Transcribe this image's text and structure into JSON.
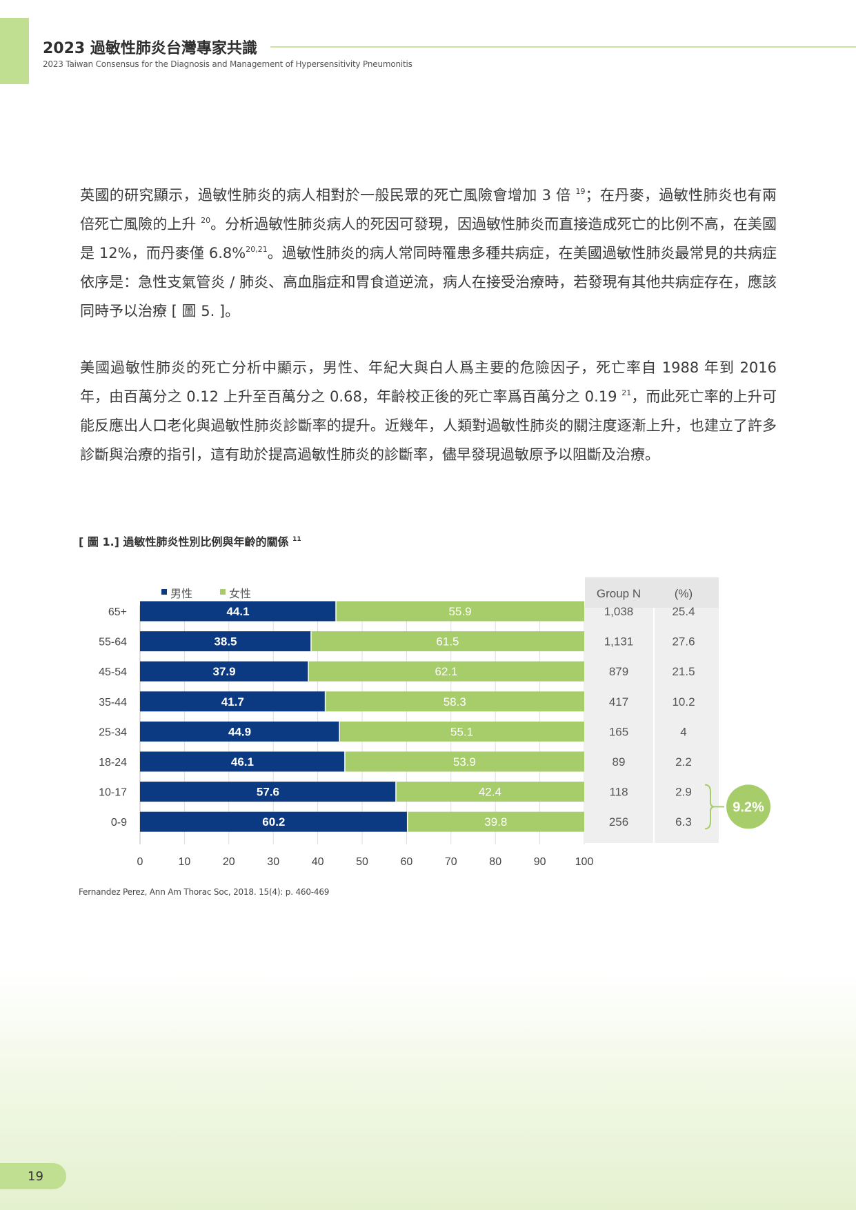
{
  "header": {
    "title": "2023 過敏性肺炎台灣專家共識",
    "subtitle": "2023 Taiwan Consensus for the Diagnosis and Management of Hypersensitivity Pneumonitis"
  },
  "paragraphs": [
    {
      "segments": [
        {
          "text": "英國的研究顯示，過敏性肺炎的病人相對於一般民眾的死亡風險會增加 3 倍 "
        },
        {
          "text": "19",
          "sup": true
        },
        {
          "text": "；在丹麥，過敏性肺炎也有兩倍死亡風險的上升 "
        },
        {
          "text": "20",
          "sup": true
        },
        {
          "text": "。分析過敏性肺炎病人的死因可發現，因過敏性肺炎而直接造成死亡的比例不高，在美國是 12%，而丹麥僅 6.8%"
        },
        {
          "text": "20,21",
          "sup": true
        },
        {
          "text": "。過敏性肺炎的病人常同時罹患多種共病症，在美國過敏性肺炎最常見的共病症依序是：急性支氣管炎 / 肺炎、高血脂症和胃食道逆流，病人在接受治療時，若發現有其他共病症存在，應該同時予以治療 [ 圖 5. ]。"
        }
      ]
    },
    {
      "segments": [
        {
          "text": "美國過敏性肺炎的死亡分析中顯示，男性、年紀大與白人爲主要的危險因子，死亡率自 1988 年到 2016 年，由百萬分之 0.12 上升至百萬分之 0.68，年齡校正後的死亡率爲百萬分之 0.19 "
        },
        {
          "text": "21",
          "sup": true
        },
        {
          "text": "，而此死亡率的上升可能反應出人口老化與過敏性肺炎診斷率的提升。近幾年，人類對過敏性肺炎的關注度逐漸上升，也建立了許多診斷與治療的指引，這有助於提高過敏性肺炎的診斷率，儘早發現過敏原予以阻斷及治療。"
        }
      ]
    }
  ],
  "figure": {
    "title": "[ 圖 1.] 過敏性肺炎性別比例與年齡的關係",
    "title_ref": "11",
    "source": "Fernandez Perez, Ann Am Thorac Soc, 2018. 15(4): p. 460-469",
    "table_headers": [
      "Group N",
      "(%)"
    ],
    "group_n": [
      "1,038",
      "1,131",
      "879",
      "417",
      "165",
      "89",
      "118",
      "256"
    ],
    "percent": [
      "25.4",
      "27.6",
      "21.5",
      "10.2",
      "4",
      "2.2",
      "2.9",
      "6.3"
    ],
    "callout": "9.2%"
  },
  "chart_data": {
    "type": "bar",
    "orientation": "horizontal",
    "stacked": true,
    "categories": [
      "65+",
      "55-64",
      "45-54",
      "35-44",
      "25-34",
      "18-24",
      "10-17",
      "0-9"
    ],
    "series": [
      {
        "name": "男性",
        "color": "#0b3a82",
        "values": [
          44.1,
          38.5,
          37.9,
          41.7,
          44.9,
          46.1,
          57.6,
          60.2
        ]
      },
      {
        "name": "女性",
        "color": "#a6cd6a",
        "values": [
          55.9,
          61.5,
          62.1,
          58.3,
          55.1,
          53.9,
          42.4,
          39.8
        ]
      }
    ],
    "xlim": [
      0,
      100
    ],
    "xticks": [
      0,
      10,
      20,
      30,
      40,
      50,
      60,
      70,
      80,
      90,
      100
    ],
    "grid": true,
    "legend": "top-left"
  },
  "page": {
    "number": "19"
  },
  "colors": {
    "accent_green": "#c0df90",
    "male_navy": "#0b3a82",
    "female_green": "#a6cd6a",
    "table_bg": "#efefef",
    "callout": "#a6cd6a"
  }
}
